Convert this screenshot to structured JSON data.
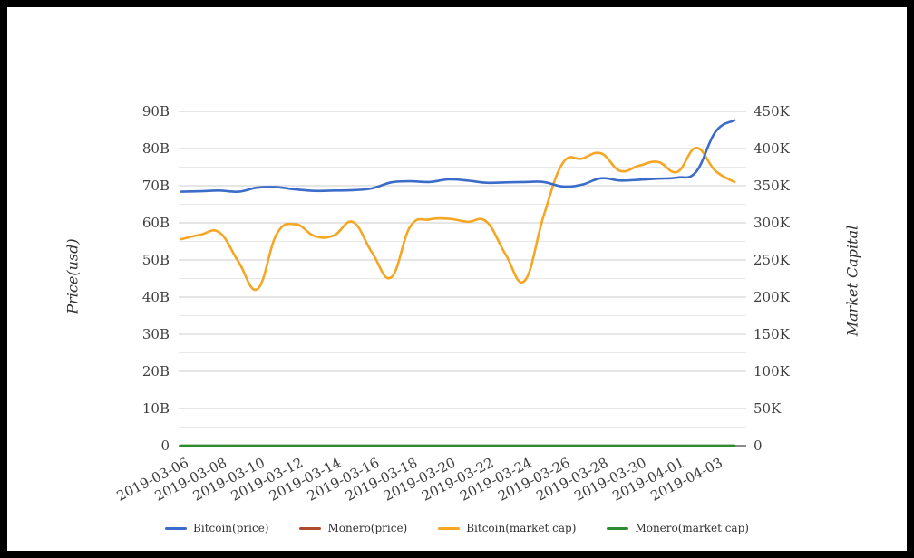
{
  "window": {
    "frame_color": "#000000",
    "background_color": "#ffffff"
  },
  "chart_data": {
    "type": "line",
    "smooth": true,
    "grid": true,
    "legend_position": "bottom",
    "unit_note": "values read off left axis in billions (B); right axis is the K scale (1B = 5K)",
    "x": [
      "2019-03-06",
      "2019-03-07",
      "2019-03-08",
      "2019-03-09",
      "2019-03-10",
      "2019-03-11",
      "2019-03-12",
      "2019-03-13",
      "2019-03-14",
      "2019-03-15",
      "2019-03-16",
      "2019-03-17",
      "2019-03-18",
      "2019-03-19",
      "2019-03-20",
      "2019-03-21",
      "2019-03-22",
      "2019-03-23",
      "2019-03-24",
      "2019-03-25",
      "2019-03-26",
      "2019-03-27",
      "2019-03-28",
      "2019-03-29",
      "2019-03-30",
      "2019-03-31",
      "2019-04-01",
      "2019-04-02",
      "2019-04-03",
      "2019-04-04"
    ],
    "x_tick_labels": [
      "2019-03-06",
      "2019-03-08",
      "2019-03-10",
      "2019-03-12",
      "2019-03-14",
      "2019-03-16",
      "2019-03-18",
      "2019-03-20",
      "2019-03-22",
      "2019-03-24",
      "2019-03-26",
      "2019-03-28",
      "2019-03-30",
      "2019-04-01",
      "2019-04-03"
    ],
    "series": [
      {
        "name": "Bitcoin(price)",
        "color": "#3b6cc8",
        "width": 2.6,
        "values": [
          68.4,
          68.5,
          68.7,
          68.4,
          69.5,
          69.6,
          69.0,
          68.6,
          68.7,
          68.8,
          69.3,
          70.9,
          71.2,
          71.0,
          71.7,
          71.4,
          70.8,
          70.9,
          71.0,
          71.0,
          69.8,
          70.3,
          72.0,
          71.4,
          71.6,
          71.9,
          72.2,
          73.8,
          84.5,
          87.6
        ]
      },
      {
        "name": "Monero(price)",
        "color": "#b1492c",
        "width": 2.0,
        "values": [
          0,
          0,
          0,
          0,
          0,
          0,
          0,
          0,
          0,
          0,
          0,
          0,
          0,
          0,
          0,
          0,
          0,
          0,
          0,
          0,
          0,
          0,
          0,
          0,
          0,
          0,
          0,
          0,
          0,
          0
        ]
      },
      {
        "name": "Bitcoin(market cap)",
        "color": "#f5a623",
        "width": 2.6,
        "values": [
          55.6,
          56.8,
          57.4,
          49.5,
          42.2,
          57.0,
          59.6,
          56.4,
          56.6,
          60.2,
          52.0,
          45.3,
          59.0,
          60.9,
          61.1,
          60.3,
          60.3,
          51.5,
          44.4,
          62.0,
          76.1,
          77.3,
          78.7,
          74.0,
          75.4,
          76.4,
          73.7,
          80.2,
          74.0,
          71.0
        ]
      },
      {
        "name": "Monero(market cap)",
        "color": "#2f8b2f",
        "width": 2.8,
        "values": [
          0,
          0,
          0,
          0,
          0,
          0,
          0,
          0,
          0,
          0,
          0,
          0,
          0,
          0,
          0,
          0,
          0,
          0,
          0,
          0,
          0,
          0,
          0,
          0,
          0,
          0,
          0,
          0,
          0,
          0
        ]
      }
    ],
    "left_axis": {
      "title": "Price(usd)",
      "ticks": [
        "0",
        "10B",
        "20B",
        "30B",
        "40B",
        "50B",
        "60B",
        "70B",
        "80B",
        "90B"
      ],
      "range_billions": [
        0,
        90
      ]
    },
    "right_axis": {
      "title": "Market Capital",
      "ticks": [
        "0",
        "50K",
        "100K",
        "150K",
        "200K",
        "250K",
        "300K",
        "350K",
        "400K",
        "450K"
      ],
      "range": [
        0,
        450000
      ]
    },
    "styles": {
      "tick_label_color": "#3f3f3f",
      "grid_major_color": "#cccccc",
      "grid_minor_color": "#e8e8e8",
      "axis_line_color": "#444444"
    }
  }
}
